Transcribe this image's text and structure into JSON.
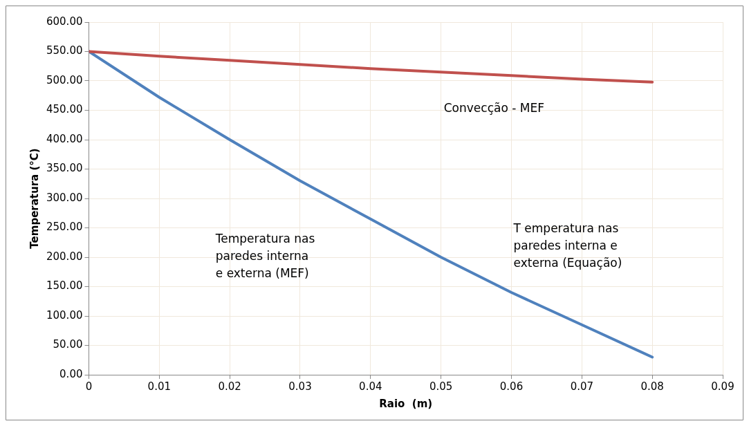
{
  "chart_data": {
    "type": "line",
    "xlabel": "Raio  (m)",
    "ylabel": "Temperatura (°C)",
    "x": [
      0,
      0.01,
      0.02,
      0.03,
      0.04,
      0.05,
      0.06,
      0.07,
      0.08
    ],
    "series": [
      {
        "color": "#c0504d",
        "values": [
          550,
          542,
          535,
          528,
          521,
          515,
          509,
          503,
          498
        ]
      },
      {
        "color": "#4f81bd",
        "values": [
          550,
          472,
          400,
          330,
          265,
          200,
          140,
          85,
          30
        ]
      }
    ],
    "xlim": [
      0,
      0.09
    ],
    "xticks": [
      0,
      0.01,
      0.02,
      0.03,
      0.04,
      0.05,
      0.06,
      0.07,
      0.08,
      0.09
    ],
    "ylim": [
      0,
      600
    ],
    "yticks": [
      {
        "value": 0,
        "label": "0.00"
      },
      {
        "value": 50,
        "label": "50.00"
      },
      {
        "value": 100,
        "label": "100.00"
      },
      {
        "value": 150,
        "label": "150.00"
      },
      {
        "value": 200,
        "label": "200.00"
      },
      {
        "value": 250,
        "label": "250.00"
      },
      {
        "value": 300,
        "label": "300.00"
      },
      {
        "value": 350,
        "label": "350.00"
      },
      {
        "value": 400,
        "label": "400.00"
      },
      {
        "value": 450,
        "label": "450.00"
      },
      {
        "value": 500,
        "label": "500.00"
      },
      {
        "value": 550,
        "label": "550.00"
      },
      {
        "value": 600,
        "label": "600.00"
      }
    ],
    "annotations": [
      "Convecção - MEF",
      "Temperatura nas\nparedes interna\ne externa (MEF)",
      "T emperatura nas\nparedes interna e\nexterna (Equação)"
    ],
    "grid": true,
    "legend": false,
    "marker": "none",
    "line_style": "solid"
  }
}
